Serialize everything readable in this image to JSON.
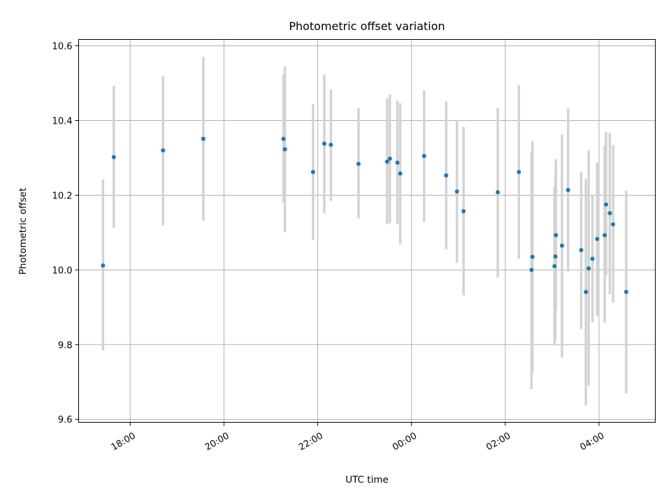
{
  "chart_data": {
    "type": "scatter",
    "title": "Photometric offset variation",
    "xlabel": "UTC time",
    "ylabel": "Photometric offset",
    "x_unit": "hours since 00:00 UTC (day 1 = 0)",
    "xlim": [
      -7.1,
      5.2
    ],
    "ylim": [
      9.592,
      10.617
    ],
    "x_ticks": [
      {
        "value": -6,
        "label": "18:00"
      },
      {
        "value": -4,
        "label": "20:00"
      },
      {
        "value": -2,
        "label": "22:00"
      },
      {
        "value": 0,
        "label": "00:00"
      },
      {
        "value": 2,
        "label": "02:00"
      },
      {
        "value": 4,
        "label": "04:00"
      }
    ],
    "y_ticks": [
      {
        "value": 9.6,
        "label": "9.6"
      },
      {
        "value": 9.8,
        "label": "9.8"
      },
      {
        "value": 10.0,
        "label": "10.0"
      },
      {
        "value": 10.2,
        "label": "10.2"
      },
      {
        "value": 10.4,
        "label": "10.4"
      },
      {
        "value": 10.6,
        "label": "10.6"
      }
    ],
    "grid": true,
    "point_color": "#1f77b4",
    "errorbar_color": "#d3d3d3",
    "points": [
      {
        "x": -6.58,
        "y": 10.012,
        "lo": 9.785,
        "hi": 10.242
      },
      {
        "x": -6.35,
        "y": 10.302,
        "lo": 10.113,
        "hi": 10.493
      },
      {
        "x": -5.3,
        "y": 10.32,
        "lo": 10.12,
        "hi": 10.519
      },
      {
        "x": -4.44,
        "y": 10.351,
        "lo": 10.132,
        "hi": 10.57
      },
      {
        "x": -2.73,
        "y": 10.351,
        "lo": 10.18,
        "hi": 10.523
      },
      {
        "x": -2.7,
        "y": 10.323,
        "lo": 10.101,
        "hi": 10.546
      },
      {
        "x": -2.1,
        "y": 10.262,
        "lo": 10.08,
        "hi": 10.444
      },
      {
        "x": -1.86,
        "y": 10.338,
        "lo": 10.151,
        "hi": 10.524
      },
      {
        "x": -1.72,
        "y": 10.335,
        "lo": 10.185,
        "hi": 10.484
      },
      {
        "x": -1.13,
        "y": 10.284,
        "lo": 10.138,
        "hi": 10.433
      },
      {
        "x": -0.52,
        "y": 10.29,
        "lo": 10.122,
        "hi": 10.46
      },
      {
        "x": -0.46,
        "y": 10.298,
        "lo": 10.125,
        "hi": 10.47
      },
      {
        "x": -0.3,
        "y": 10.287,
        "lo": 10.122,
        "hi": 10.454
      },
      {
        "x": -0.24,
        "y": 10.258,
        "lo": 10.069,
        "hi": 10.446
      },
      {
        "x": 0.27,
        "y": 10.305,
        "lo": 10.128,
        "hi": 10.48
      },
      {
        "x": 0.74,
        "y": 10.253,
        "lo": 10.055,
        "hi": 10.451
      },
      {
        "x": 0.97,
        "y": 10.21,
        "lo": 10.019,
        "hi": 10.4
      },
      {
        "x": 1.11,
        "y": 10.157,
        "lo": 9.932,
        "hi": 10.383
      },
      {
        "x": 1.84,
        "y": 10.208,
        "lo": 9.98,
        "hi": 10.434
      },
      {
        "x": 2.29,
        "y": 10.262,
        "lo": 10.03,
        "hi": 10.495
      },
      {
        "x": 2.56,
        "y": 10.0,
        "lo": 9.681,
        "hi": 10.317
      },
      {
        "x": 2.58,
        "y": 10.035,
        "lo": 9.725,
        "hi": 10.345
      },
      {
        "x": 3.05,
        "y": 10.01,
        "lo": 9.797,
        "hi": 10.223
      },
      {
        "x": 3.07,
        "y": 10.036,
        "lo": 9.81,
        "hi": 10.262
      },
      {
        "x": 3.08,
        "y": 10.093,
        "lo": 9.89,
        "hi": 10.297
      },
      {
        "x": 3.21,
        "y": 10.065,
        "lo": 9.765,
        "hi": 10.362
      },
      {
        "x": 3.34,
        "y": 10.214,
        "lo": 9.996,
        "hi": 10.432
      },
      {
        "x": 3.62,
        "y": 10.053,
        "lo": 9.842,
        "hi": 10.263
      },
      {
        "x": 3.72,
        "y": 9.941,
        "lo": 9.637,
        "hi": 10.244
      },
      {
        "x": 3.78,
        "y": 10.004,
        "lo": 9.69,
        "hi": 10.32
      },
      {
        "x": 3.86,
        "y": 10.03,
        "lo": 9.86,
        "hi": 10.2
      },
      {
        "x": 3.96,
        "y": 10.083,
        "lo": 9.877,
        "hi": 10.288
      },
      {
        "x": 4.12,
        "y": 10.093,
        "lo": 9.858,
        "hi": 10.333
      },
      {
        "x": 4.15,
        "y": 10.175,
        "lo": 9.985,
        "hi": 10.37
      },
      {
        "x": 4.23,
        "y": 10.152,
        "lo": 9.935,
        "hi": 10.367
      },
      {
        "x": 4.3,
        "y": 10.122,
        "lo": 9.912,
        "hi": 10.334
      },
      {
        "x": 4.58,
        "y": 9.941,
        "lo": 9.67,
        "hi": 10.213
      }
    ]
  }
}
